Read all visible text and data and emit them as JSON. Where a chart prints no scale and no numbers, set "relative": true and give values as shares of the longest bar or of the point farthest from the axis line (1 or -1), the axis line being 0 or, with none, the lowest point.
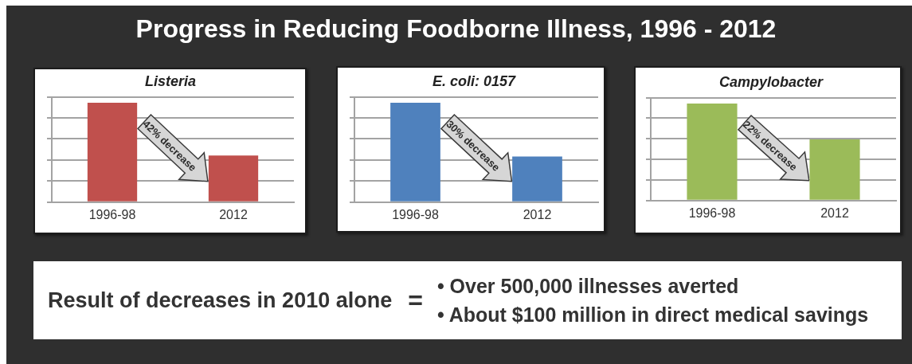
{
  "chart_data": [
    {
      "type": "other",
      "title": "Progress in Reducing Foodborne Illness, 1996 - 2012"
    },
    {
      "type": "bar",
      "title": "Listeria",
      "categories": [
        "1996-98",
        "2012"
      ],
      "values": [
        1,
        0.47
      ],
      "color": "#c0504d",
      "relative": true,
      "grid": "y",
      "annotations": [
        "42% decrease"
      ]
    },
    {
      "type": "bar",
      "title": "E. coli: 0157",
      "categories": [
        "1996-98",
        "2012"
      ],
      "values": [
        1,
        0.46
      ],
      "color": "#4f81bd",
      "relative": true,
      "grid": "y",
      "annotations": [
        "30% decrease"
      ]
    },
    {
      "type": "bar",
      "title": "Campylobacter",
      "categories": [
        "1996-98",
        "2012"
      ],
      "values": [
        1,
        0.63
      ],
      "color": "#9bbb59",
      "relative": true,
      "grid": "y",
      "annotations": [
        "22% decrease"
      ]
    },
    {
      "type": "other",
      "annotations": [
        "Result of decreases in 2010 alone",
        "=",
        "• Over 500,000 illnesses averted",
        "• About $100 million in direct medical savings"
      ]
    }
  ]
}
